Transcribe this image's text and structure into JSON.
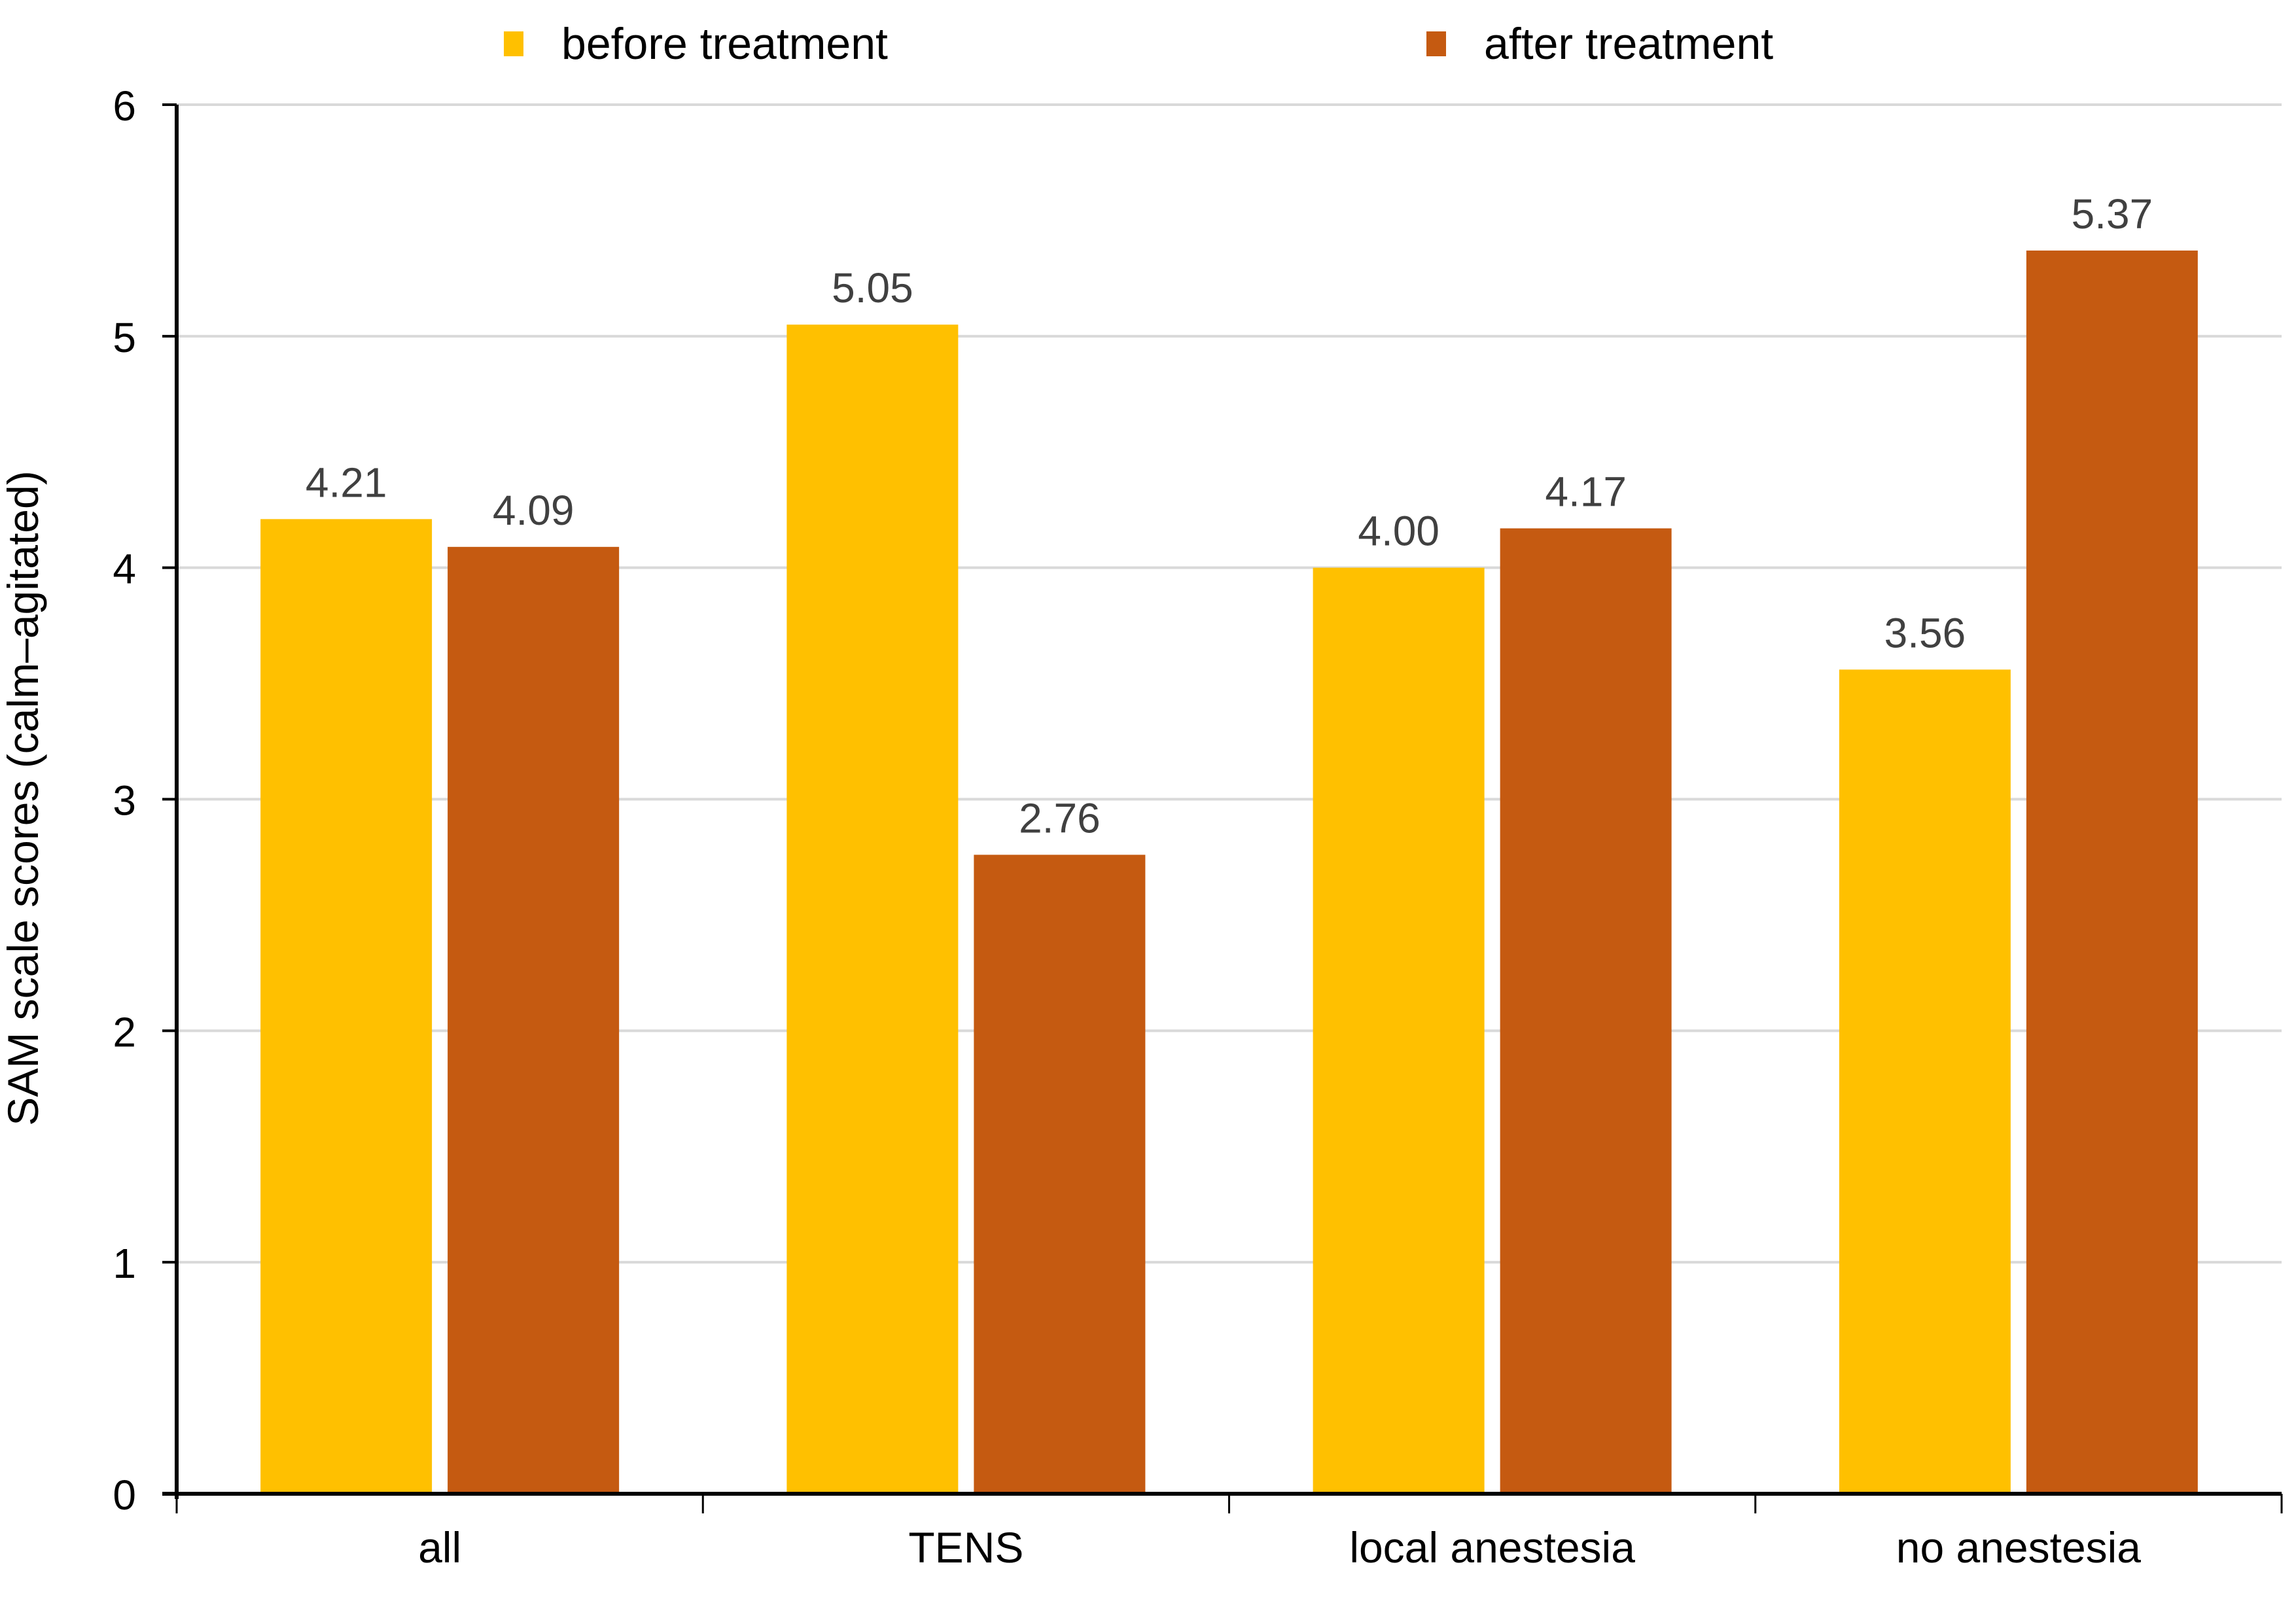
{
  "chart_data": {
    "type": "bar",
    "title": "",
    "xlabel": "",
    "ylabel": "SAM scale scores (calm–agitated)",
    "categories": [
      "all",
      "TENS",
      "local anestesia",
      "no anestesia"
    ],
    "series": [
      {
        "name": "before treatment",
        "color": "#FFC000",
        "values": [
          4.21,
          5.05,
          4.0,
          3.56
        ],
        "labels": [
          "4.21",
          "5.05",
          "4.00",
          "3.56"
        ]
      },
      {
        "name": "after treatment",
        "color": "#C55A11",
        "values": [
          4.09,
          2.76,
          4.17,
          5.37
        ],
        "labels": [
          "4.09",
          "2.76",
          "4.17",
          "5.37"
        ]
      }
    ],
    "ylim": [
      0,
      6
    ],
    "yticks": [
      "0",
      "1",
      "2",
      "3",
      "4",
      "5",
      "6"
    ],
    "grid": true,
    "legend_position": "top",
    "data_label_color": "#404040",
    "gridline_color": "#D9D9D9"
  }
}
